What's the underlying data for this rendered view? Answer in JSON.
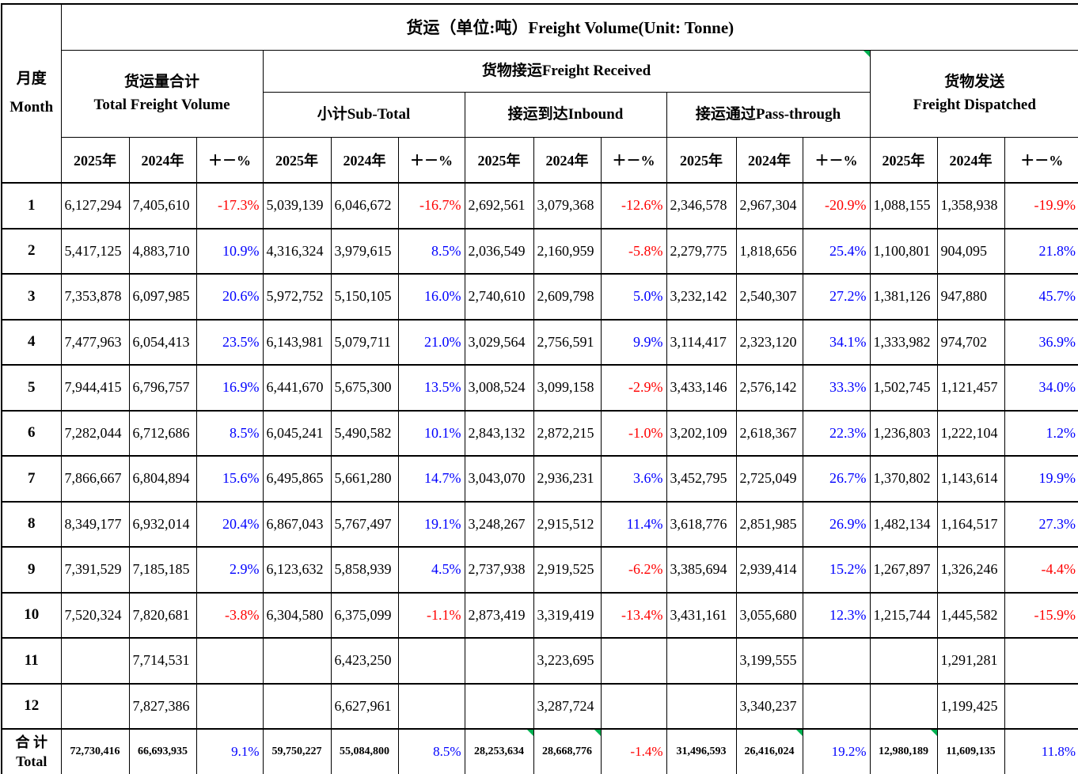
{
  "title": "货运（单位:吨）Freight Volume(Unit:  Tonne)",
  "month_header": {
    "zh": "月度",
    "en": "Month"
  },
  "groups": {
    "total_freight": {
      "zh": "货运量合计",
      "en": "Total Freight Volume"
    },
    "received": "货物接运Freight Received",
    "subtotal": "小计Sub-Total",
    "inbound": "接运到达Inbound",
    "passthrough": "接运通过Pass-through",
    "dispatched": {
      "zh": "货物发送",
      "en": "Freight Dispatched"
    }
  },
  "year_headers": {
    "y2025": "2025年",
    "y2024": "2024年",
    "pct": "＋－%"
  },
  "colors": {
    "positive_pct": "#0000FF",
    "negative_pct": "#FF0000",
    "comment_marker": "#00B050"
  },
  "markers": {
    "header_received": true,
    "total_cells": [
      6,
      7,
      10,
      12
    ]
  },
  "rows": [
    {
      "month": "1",
      "cells": [
        "6,127,294",
        "7,405,610",
        "-17.3%",
        "5,039,139",
        "6,046,672",
        "-16.7%",
        "2,692,561",
        "3,079,368",
        "-12.6%",
        "2,346,578",
        "2,967,304",
        "-20.9%",
        "1,088,155",
        "1,358,938",
        "-19.9%"
      ]
    },
    {
      "month": "2",
      "cells": [
        "5,417,125",
        "4,883,710",
        "10.9%",
        "4,316,324",
        "3,979,615",
        "8.5%",
        "2,036,549",
        "2,160,959",
        "-5.8%",
        "2,279,775",
        "1,818,656",
        "25.4%",
        "1,100,801",
        "904,095",
        "21.8%"
      ]
    },
    {
      "month": "3",
      "cells": [
        "7,353,878",
        "6,097,985",
        "20.6%",
        "5,972,752",
        "5,150,105",
        "16.0%",
        "2,740,610",
        "2,609,798",
        "5.0%",
        "3,232,142",
        "2,540,307",
        "27.2%",
        "1,381,126",
        "947,880",
        "45.7%"
      ]
    },
    {
      "month": "4",
      "cells": [
        "7,477,963",
        "6,054,413",
        "23.5%",
        "6,143,981",
        "5,079,711",
        "21.0%",
        "3,029,564",
        "2,756,591",
        "9.9%",
        "3,114,417",
        "2,323,120",
        "34.1%",
        "1,333,982",
        "974,702",
        "36.9%"
      ]
    },
    {
      "month": "5",
      "cells": [
        "7,944,415",
        "6,796,757",
        "16.9%",
        "6,441,670",
        "5,675,300",
        "13.5%",
        "3,008,524",
        "3,099,158",
        "-2.9%",
        "3,433,146",
        "2,576,142",
        "33.3%",
        "1,502,745",
        "1,121,457",
        "34.0%"
      ]
    },
    {
      "month": "6",
      "cells": [
        "7,282,044",
        "6,712,686",
        "8.5%",
        "6,045,241",
        "5,490,582",
        "10.1%",
        "2,843,132",
        "2,872,215",
        "-1.0%",
        "3,202,109",
        "2,618,367",
        "22.3%",
        "1,236,803",
        "1,222,104",
        "1.2%"
      ]
    },
    {
      "month": "7",
      "cells": [
        "7,866,667",
        "6,804,894",
        "15.6%",
        "6,495,865",
        "5,661,280",
        "14.7%",
        "3,043,070",
        "2,936,231",
        "3.6%",
        "3,452,795",
        "2,725,049",
        "26.7%",
        "1,370,802",
        "1,143,614",
        "19.9%"
      ]
    },
    {
      "month": "8",
      "cells": [
        "8,349,177",
        "6,932,014",
        "20.4%",
        "6,867,043",
        "5,767,497",
        "19.1%",
        "3,248,267",
        "2,915,512",
        "11.4%",
        "3,618,776",
        "2,851,985",
        "26.9%",
        "1,482,134",
        "1,164,517",
        "27.3%"
      ]
    },
    {
      "month": "9",
      "cells": [
        "7,391,529",
        "7,185,185",
        "2.9%",
        "6,123,632",
        "5,858,939",
        "4.5%",
        "2,737,938",
        "2,919,525",
        "-6.2%",
        "3,385,694",
        "2,939,414",
        "15.2%",
        "1,267,897",
        "1,326,246",
        "-4.4%"
      ]
    },
    {
      "month": "10",
      "cells": [
        "7,520,324",
        "7,820,681",
        "-3.8%",
        "6,304,580",
        "6,375,099",
        "-1.1%",
        "2,873,419",
        "3,319,419",
        "-13.4%",
        "3,431,161",
        "3,055,680",
        "12.3%",
        "1,215,744",
        "1,445,582",
        "-15.9%"
      ]
    },
    {
      "month": "11",
      "cells": [
        "",
        "7,714,531",
        "",
        "",
        "6,423,250",
        "",
        "",
        "3,223,695",
        "",
        "",
        "3,199,555",
        "",
        "",
        "1,291,281",
        ""
      ]
    },
    {
      "month": "12",
      "cells": [
        "",
        "7,827,386",
        "",
        "",
        "6,627,961",
        "",
        "",
        "3,287,724",
        "",
        "",
        "3,340,237",
        "",
        "",
        "1,199,425",
        ""
      ]
    }
  ],
  "total_row": {
    "label_zh": "合 计",
    "label_en": "Total",
    "cells": [
      "72,730,416",
      "66,693,935",
      "9.1%",
      "59,750,227",
      "55,084,800",
      "8.5%",
      "28,253,634",
      "28,668,776",
      "-1.4%",
      "31,496,593",
      "26,416,024",
      "19.2%",
      "12,980,189",
      "11,609,135",
      "11.8%"
    ]
  }
}
